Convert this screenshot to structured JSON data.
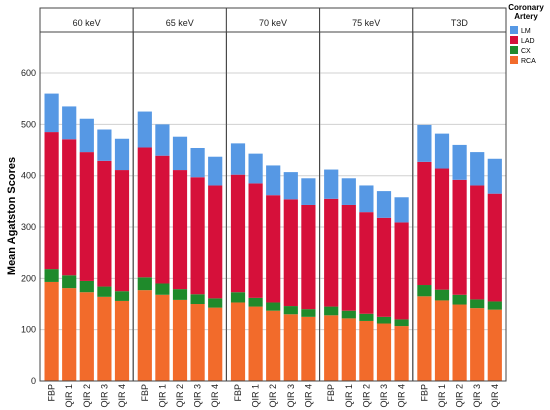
{
  "chart_data": {
    "type": "bar",
    "stacked": true,
    "ylabel": "Mean Agatston Scores",
    "ylim": [
      0,
      680
    ],
    "yticks": [
      0,
      100,
      200,
      300,
      400,
      500,
      600
    ],
    "grid": true,
    "legend": {
      "title_lines": [
        "Coronary",
        "Artery"
      ],
      "placement": "top-right",
      "entries": [
        {
          "label": "LM",
          "color": "#5698e4"
        },
        {
          "label": "LAD",
          "color": "#d6103a"
        },
        {
          "label": "CX",
          "color": "#1f8a2b"
        },
        {
          "label": "RCA",
          "color": "#f26b2b"
        }
      ]
    },
    "categories": [
      "FBP",
      "QIR 1",
      "QIR 2",
      "QIR 3",
      "QIR 4"
    ],
    "stack_order": [
      "RCA",
      "CX",
      "LAD",
      "LM"
    ],
    "panels": [
      {
        "title": "60 keV",
        "series": [
          {
            "name": "RCA",
            "values": [
              193,
              181,
              173,
              164,
              156
            ]
          },
          {
            "name": "CX",
            "values": [
              25,
              25,
              22,
              20,
              19
            ]
          },
          {
            "name": "LAD",
            "values": [
              267,
              265,
              251,
              245,
              236
            ]
          },
          {
            "name": "LM",
            "values": [
              75,
              64,
              65,
              61,
              61
            ]
          }
        ]
      },
      {
        "title": "65 keV",
        "series": [
          {
            "name": "RCA",
            "values": [
              177,
              168,
              158,
              150,
              143
            ]
          },
          {
            "name": "CX",
            "values": [
              25,
              22,
              21,
              19,
              18
            ]
          },
          {
            "name": "LAD",
            "values": [
              253,
              249,
              232,
              228,
              220
            ]
          },
          {
            "name": "LM",
            "values": [
              70,
              61,
              65,
              57,
              56
            ]
          }
        ]
      },
      {
        "title": "70 keV",
        "series": [
          {
            "name": "RCA",
            "values": [
              153,
              145,
              137,
              130,
              125
            ]
          },
          {
            "name": "CX",
            "values": [
              20,
              17,
              16,
              16,
              15
            ]
          },
          {
            "name": "LAD",
            "values": [
              229,
              223,
              209,
              208,
              203
            ]
          },
          {
            "name": "LM",
            "values": [
              61,
              58,
              58,
              53,
              52
            ]
          }
        ]
      },
      {
        "title": "75 keV",
        "series": [
          {
            "name": "RCA",
            "values": [
              128,
              122,
              117,
              112,
              107
            ]
          },
          {
            "name": "CX",
            "values": [
              17,
              15,
              14,
              13,
              13
            ]
          },
          {
            "name": "LAD",
            "values": [
              210,
              206,
              198,
              193,
              189
            ]
          },
          {
            "name": "LM",
            "values": [
              57,
              52,
              52,
              52,
              49
            ]
          }
        ]
      },
      {
        "title": "T3D",
        "series": [
          {
            "name": "RCA",
            "values": [
              165,
              157,
              149,
              142,
              139
            ]
          },
          {
            "name": "CX",
            "values": [
              22,
              21,
              19,
              17,
              16
            ]
          },
          {
            "name": "LAD",
            "values": [
              240,
              236,
              224,
              222,
              210
            ]
          },
          {
            "name": "LM",
            "values": [
              72,
              68,
              68,
              65,
              68
            ]
          }
        ]
      }
    ]
  }
}
